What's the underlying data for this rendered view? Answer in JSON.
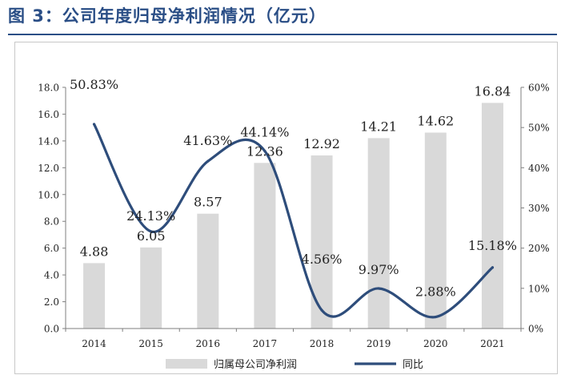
{
  "figure_title": "图 3：公司年度归母净利润情况（亿元）",
  "chart_data": {
    "type": "bar+line",
    "categories": [
      "2014",
      "2015",
      "2016",
      "2017",
      "2018",
      "2019",
      "2020",
      "2021"
    ],
    "series": [
      {
        "name": "归属母公司净利润",
        "type": "bar",
        "axis": "left",
        "values": [
          4.88,
          6.05,
          8.57,
          12.36,
          12.92,
          14.21,
          14.62,
          16.84
        ],
        "labels": [
          "4.88",
          "6.05",
          "8.57",
          "12.36",
          "12.92",
          "14.21",
          "14.62",
          "16.84"
        ],
        "color": "#d9d9d9"
      },
      {
        "name": "同比",
        "type": "line",
        "axis": "right",
        "values": [
          50.83,
          24.13,
          41.63,
          44.14,
          4.56,
          9.97,
          2.88,
          15.18
        ],
        "labels": [
          "50.83%",
          "24.13%",
          "41.63%",
          "44.14%",
          "4.56%",
          "9.97%",
          "2.88%",
          "15.18%"
        ],
        "color": "#2e4d7b"
      }
    ],
    "y_left": {
      "min": 0,
      "max": 18,
      "ticks": [
        "0.0",
        "2.0",
        "4.0",
        "6.0",
        "8.0",
        "10.0",
        "12.0",
        "14.0",
        "16.0",
        "18.0"
      ]
    },
    "y_right": {
      "min": 0,
      "max": 60,
      "ticks": [
        "0%",
        "10%",
        "20%",
        "30%",
        "40%",
        "50%",
        "60%"
      ]
    },
    "legend_position": "bottom",
    "grid": false
  }
}
